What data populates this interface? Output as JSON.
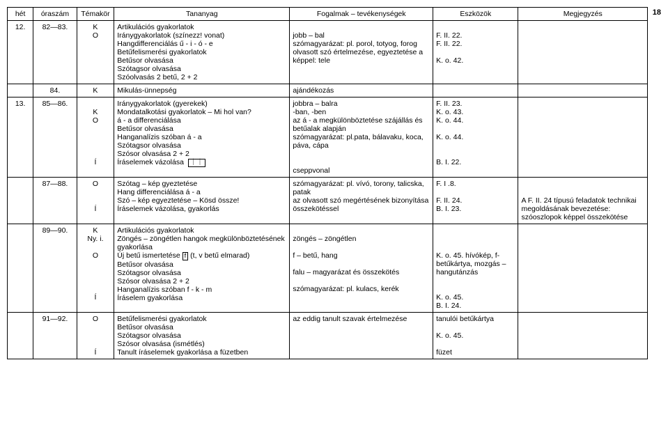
{
  "page_number": "18",
  "headers": {
    "het": "hét",
    "oraszam": "óraszám",
    "temakor": "Témakör",
    "tananyag": "Tananyag",
    "fogalmak": "Fogalmak – tevékenységek",
    "eszkozok": "Eszközök",
    "megjegyzes": "Megjegyzés"
  },
  "rows": [
    {
      "het": "12.",
      "ora": "82—83.",
      "tema": "K\nO",
      "tan": "Artikulációs gyakorlatok\nIránygyakorlatok (színezz! vonat)\nHangdifferenciálás ű - i - ó - e\nBetűfelismerési gyakorlatok\nBetűsor olvasása\nSzótagsor olvasása\nSzóolvasás 2 betű, 2 + 2",
      "fog": "\njobb – bal\nszómagyarázat: pl. porol, totyog, forog\nolvasott szó értelmezése, egyeztetése a képpel: tele",
      "esz": "\nF. II. 22.\nF. II. 22.\n\nK. o. 42.",
      "meg": ""
    },
    {
      "het": "",
      "ora": "84.",
      "tema": "K",
      "tan": "Mikulás-ünnepség",
      "fog": "ajándékozás",
      "esz": "",
      "meg": ""
    },
    {
      "het": "13.",
      "ora": "85—86.",
      "tema": "\nK\nO\n\n\n\n\nÍ",
      "tan_html": "Iránygyakorlatok (gyerekek)<br>Mondatalkotási gyakorlatok – Mi hol van?<br>á - a differenciálása<br>Betűsor olvasása<br>Hanganalízis szóban á - a<br>Szótagsor olvasása<br>Szósor olvasása 2 + 2<br>Íráselemek vázolása &nbsp;<span class='box'>｜｜</span>",
      "fog": "jobbra – balra\n-ban, -ben\naz á - a megkülönböztetése szájállás és betűalak alapján\nszómagyarázat: pl.pata, bálavaku, koca, páva, cápa\n\n\ncseppvonal",
      "esz": "F. II. 23.\nK. o. 43.\nK. o. 44.\n\nK. o. 44.\n\n\nB. I. 22.",
      "meg": ""
    },
    {
      "het": "",
      "ora": "87—88.",
      "tema": "O\n\n\nÍ",
      "tan": "Szótag – kép gyeztetése\nHang differenciálása á - a\nSzó – kép egyeztetése – Kösd össze!\nÍráselemek vázolása, gyakorlás",
      "fog": "szómagyarázat: pl. vívó, torony, talicska, patak\naz olvasott szó megértésének bizonyítása összekötéssel",
      "esz": "F. I .8.\n\nF. II. 24.\nB. I. 23.",
      "meg": "\n\nA F. II. 24 típusú feladatok technikai megoldásának bevezetése: szóoszlopok képpel összekötése"
    },
    {
      "het": "",
      "ora": "89—90.",
      "tema": "K\nNy. i.\n\nO\n\n\n\n\nÍ",
      "tan_html": "Artikulációs gyakorlatok<br>Zöngés – zöngétlen hangok megkülönböztetésének gyakorlása<br>Új betű ismertetése <span class='box'>f</span> (t, v betű elmarad)<br>Betűsor olvasása<br>Szótagsor olvasása<br>Szósor olvasása 2 + 2<br>Hanganalízis szóban f - k - m<br>Íráselem gyakorlása",
      "fog": "\nzöngés – zöngétlen\n\nf – betű, hang\n\nfalu – magyarázat és összekötés\n\nszómagyarázat: pl. kulacs, kerék",
      "esz": "\n\n\nK. o. 45. hívókép, f-betűkártya, mozgás – hangutánzás\n\n\nK. o. 45.\nB. I. 24.",
      "meg": ""
    },
    {
      "het": "",
      "ora": "91—92.",
      "tema": "O\n\n\n\nÍ",
      "tan": "Betűfelismerési gyakorlatok\nBetűsor olvasása\nSzótagsor olvasása\nSzósor olvasása (ismétlés)\nTanult íráselemek gyakorlása a füzetben",
      "fog": "az eddig tanult szavak értelmezése",
      "esz": "tanulói betűkártya\n\nK. o. 45.\n\nfüzet",
      "meg": ""
    }
  ]
}
